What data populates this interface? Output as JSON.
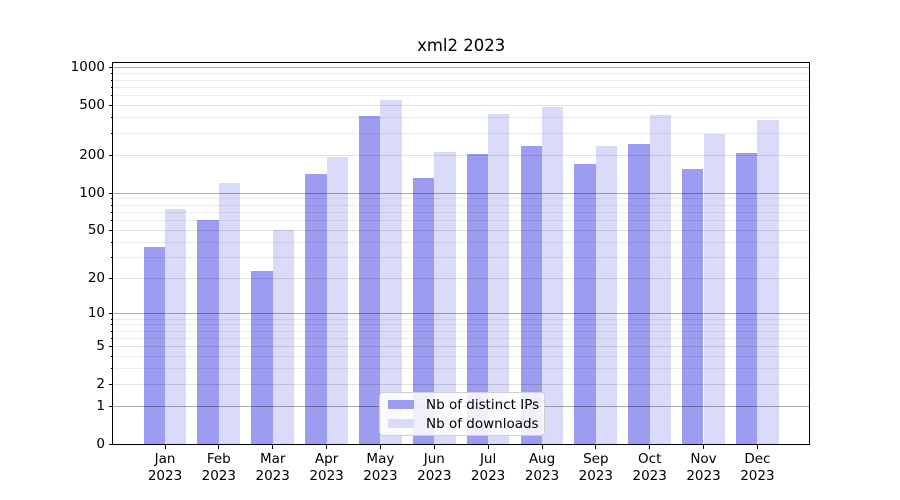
{
  "chart_data": {
    "type": "bar",
    "title": "xml2 2023",
    "categories": [
      "Jan",
      "Feb",
      "Mar",
      "Apr",
      "May",
      "Jun",
      "Jul",
      "Aug",
      "Sep",
      "Oct",
      "Nov",
      "Dec"
    ],
    "year_label": "2023",
    "series": [
      {
        "name": "Nb of distinct IPs",
        "color": "#9c9cf0",
        "values": [
          36,
          60,
          23,
          140,
          413,
          130,
          205,
          235,
          168,
          245,
          155,
          209
        ]
      },
      {
        "name": "Nb of downloads",
        "color": "#dadaf9",
        "values": [
          73,
          120,
          50,
          192,
          552,
          212,
          423,
          487,
          238,
          419,
          294,
          381
        ]
      }
    ],
    "yscale": "log1p",
    "ylim": [
      0,
      1090
    ],
    "yticks": [
      0,
      1,
      2,
      5,
      10,
      20,
      50,
      100,
      200,
      500,
      1000
    ],
    "yticks_minor": [
      3,
      4,
      6,
      7,
      8,
      9,
      30,
      40,
      60,
      70,
      80,
      90,
      300,
      400,
      600,
      700,
      800,
      900
    ],
    "xlabel": "",
    "ylabel": "",
    "grid": true,
    "legend_position": "lower center"
  },
  "colors": {
    "grid_decade": "rgba(0,0,0,0.32)",
    "grid_major": "rgba(0,0,0,0.12)",
    "grid_minor": "rgba(0,0,0,0.075)",
    "spine": "#000000",
    "background": "#ffffff"
  }
}
